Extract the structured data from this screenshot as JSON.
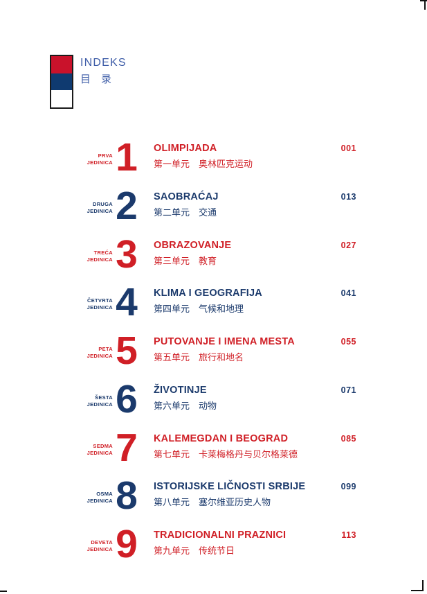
{
  "colors": {
    "red": "#D01F26",
    "blue": "#1B3A6C",
    "header_blue": "#3D5CA7",
    "flag_red": "#C9122B",
    "flag_blue": "#0F3A70",
    "flag_white": "#FFFFFF"
  },
  "header": {
    "title": "INDEKS",
    "title_cjk": "目　录"
  },
  "toc": {
    "entries": [
      {
        "unit_line1": "PRVA",
        "unit_line2": "JEDINICA",
        "number": "1",
        "title": "OLIMPIJADA",
        "subtitle_cjk": "第一单元　奥林匹克运动",
        "page": "001",
        "color": "red"
      },
      {
        "unit_line1": "DRUGA",
        "unit_line2": "JEDINICA",
        "number": "2",
        "title": "SAOBRAĆAJ",
        "subtitle_cjk": "第二单元　交通",
        "page": "013",
        "color": "blue"
      },
      {
        "unit_line1": "TREĆA",
        "unit_line2": "JEDINICA",
        "number": "3",
        "title": "OBRAZOVANJE",
        "subtitle_cjk": "第三单元　教育",
        "page": "027",
        "color": "red"
      },
      {
        "unit_line1": "ČETVRTA",
        "unit_line2": "JEDINICA",
        "number": "4",
        "title": "KLIMA I GEOGRAFIJA",
        "subtitle_cjk": "第四单元　气候和地理",
        "page": "041",
        "color": "blue"
      },
      {
        "unit_line1": "PETA",
        "unit_line2": "JEDINICA",
        "number": "5",
        "title": "PUTOVANJE I IMENA MESTA",
        "subtitle_cjk": "第五单元　旅行和地名",
        "page": "055",
        "color": "red"
      },
      {
        "unit_line1": "ŠESTA",
        "unit_line2": "JEDINICA",
        "number": "6",
        "title": "ŽIVOTINJE",
        "subtitle_cjk": "第六单元　动物",
        "page": "071",
        "color": "blue"
      },
      {
        "unit_line1": "SEDMA",
        "unit_line2": "JEDINICA",
        "number": "7",
        "title": "KALEMEGDAN I BEOGRAD",
        "subtitle_cjk": "第七单元　卡莱梅格丹与贝尔格莱德",
        "page": "085",
        "color": "red"
      },
      {
        "unit_line1": "OSMA",
        "unit_line2": "JEDINICA",
        "number": "8",
        "title": "ISTORIJSKE LIČNOSTI SRBIJE",
        "subtitle_cjk": "第八单元　塞尔维亚历史人物",
        "page": "099",
        "color": "blue"
      },
      {
        "unit_line1": "DEVETA",
        "unit_line2": "JEDINICA",
        "number": "9",
        "title": "TRADICIONALNI PRAZNICI",
        "subtitle_cjk": "第九单元　传统节日",
        "page": "113",
        "color": "red"
      }
    ]
  }
}
